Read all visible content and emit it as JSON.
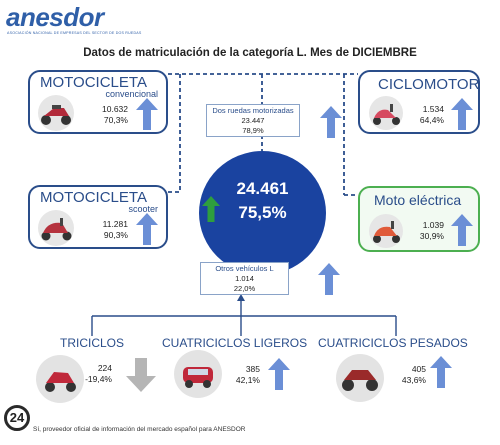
{
  "header": {
    "logo": "anesdor",
    "logo_sub": "ASOCIACIÓN NACIONAL DE EMPRESAS DEL SECTOR DE DOS RUEDAS",
    "title": "Datos de matriculación de la categoría L. Mes de DICIEMBRE"
  },
  "center": {
    "total": "24.461",
    "pct": "75,5%",
    "trend": "up"
  },
  "cards": {
    "moto_conv": {
      "title": "MOTOCICLETA",
      "subtitle": "convencional",
      "value": "10.632",
      "pct": "70,3%",
      "trend": "up"
    },
    "moto_scooter": {
      "title": "MOTOCICLETA",
      "subtitle": "scooter",
      "value": "11.281",
      "pct": "90,3%",
      "trend": "up"
    },
    "ciclomotor": {
      "title": "CICLOMOTOR",
      "value": "1.534",
      "pct": "64,4%",
      "trend": "up"
    },
    "moto_electrica": {
      "title": "Moto eléctrica",
      "value": "1.039",
      "pct": "30,9%",
      "trend": "up"
    }
  },
  "groups": {
    "dos_ruedas": {
      "label": "Dos ruedas motorizadas",
      "value": "23.447",
      "pct": "78,9%",
      "trend": "up"
    },
    "otros": {
      "label": "Otros vehículos L",
      "value": "1.014",
      "pct": "22,0%",
      "trend": "up"
    }
  },
  "bottom": {
    "triciclos": {
      "title": "TRICICLOS",
      "value": "224",
      "pct": "-19,4%",
      "trend": "down"
    },
    "cuad_ligeros": {
      "title": "CUATRICICLOS LIGEROS",
      "value": "385",
      "pct": "42,1%",
      "trend": "up"
    },
    "cuad_pesados": {
      "title": "CUATRICICLOS PESADOS",
      "value": "405",
      "pct": "43,6%",
      "trend": "up"
    }
  },
  "footer": {
    "logo": "24",
    "text": "Sí, proveedor oficial de información del mercado español para ANESDOR"
  },
  "colors": {
    "accent": "#2a4d8a",
    "circle": "#1a43a0",
    "arrow_up": "#6b8fd6",
    "arrow_down": "#b5b5b5",
    "arrow_center": "#2e9e3e",
    "green_border": "#4caf50"
  }
}
